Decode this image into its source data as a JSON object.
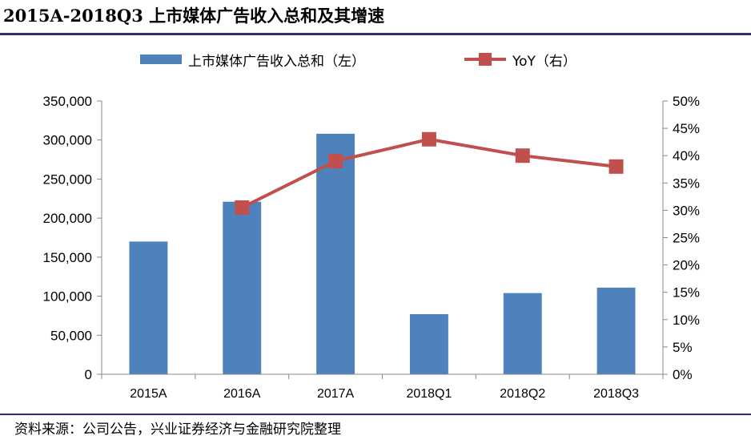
{
  "title": "2015A-2018Q3 上市媒体广告收入总和及其增速",
  "source": "资料来源：公司公告，兴业证券经济与金融研究院整理",
  "colors": {
    "bar": "#4f81bd",
    "line": "#c0504d",
    "rule": "#2b2f6b"
  },
  "chart_data": {
    "type": "bar",
    "categories": [
      "2015A",
      "2016A",
      "2017A",
      "2018Q1",
      "2018Q2",
      "2018Q3"
    ],
    "series": [
      {
        "name": "上市媒体广告收入总和（左）",
        "type": "bar",
        "axis": "left",
        "values": [
          170000,
          221000,
          308000,
          77000,
          104000,
          111000
        ]
      },
      {
        "name": "YoY（右）",
        "type": "line",
        "axis": "right",
        "values": [
          null,
          0.305,
          0.39,
          0.43,
          0.4,
          0.38
        ]
      }
    ],
    "y_left": {
      "lim": [
        0,
        350000
      ],
      "ticks": [
        0,
        50000,
        100000,
        150000,
        200000,
        250000,
        300000,
        350000
      ],
      "tick_labels": [
        "0",
        "50,000",
        "100,000",
        "150,000",
        "200,000",
        "250,000",
        "300,000",
        "350,000"
      ]
    },
    "y_right": {
      "lim": [
        0,
        0.5
      ],
      "ticks": [
        0,
        0.05,
        0.1,
        0.15,
        0.2,
        0.25,
        0.3,
        0.35,
        0.4,
        0.45,
        0.5
      ],
      "tick_labels": [
        "0%",
        "5%",
        "10%",
        "15%",
        "20%",
        "25%",
        "30%",
        "35%",
        "40%",
        "45%",
        "50%"
      ]
    },
    "legend_position": "top",
    "grid": false
  }
}
